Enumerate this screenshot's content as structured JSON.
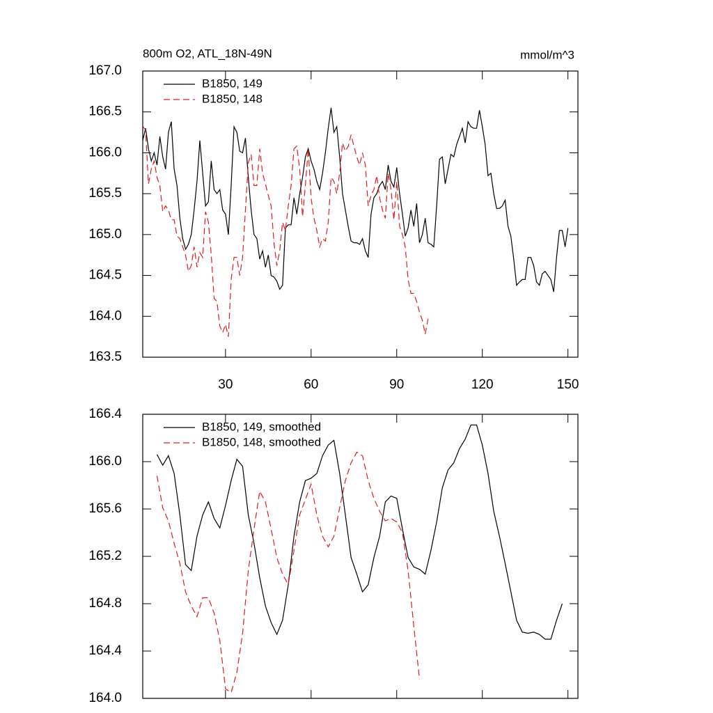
{
  "chart_data": [
    {
      "type": "line",
      "title": "800m O2, ATL_18N-49N",
      "units_label": "mmol/m^3",
      "x": [
        1,
        2,
        3,
        4,
        5,
        6,
        7,
        8,
        9,
        10,
        11,
        12,
        13,
        14,
        15,
        16,
        17,
        18,
        19,
        20,
        21,
        22,
        23,
        24,
        25,
        26,
        27,
        28,
        29,
        30,
        31,
        32,
        33,
        34,
        35,
        36,
        37,
        38,
        39,
        40,
        41,
        42,
        43,
        44,
        45,
        46,
        47,
        48,
        49,
        50,
        51,
        52,
        53,
        54,
        55,
        56,
        57,
        58,
        59,
        60,
        61,
        62,
        63,
        64,
        65,
        66,
        67,
        68,
        69,
        70,
        71,
        72,
        73,
        74,
        75,
        76,
        77,
        78,
        79,
        80,
        81,
        82,
        83,
        84,
        85,
        86,
        87,
        88,
        89,
        90,
        91,
        92,
        93,
        94,
        95,
        96,
        97,
        98,
        99,
        100,
        101,
        102,
        103,
        104,
        105,
        106,
        107,
        108,
        109,
        110,
        111,
        112,
        113,
        114,
        115,
        116,
        117,
        118,
        119,
        120,
        121,
        122,
        123,
        124,
        125,
        126,
        127,
        128,
        129,
        130,
        131,
        132,
        133,
        134,
        135,
        136,
        137,
        138,
        139,
        140,
        141,
        142,
        143,
        144,
        145,
        146,
        147,
        148,
        149,
        150
      ],
      "series": [
        {
          "name": "B1850, 149",
          "color": "#000000",
          "dash": false,
          "values": [
            166.15,
            166.3,
            166.05,
            165.9,
            166.0,
            165.85,
            166.2,
            165.95,
            165.8,
            166.25,
            166.38,
            165.8,
            165.6,
            165.2,
            164.95,
            164.82,
            164.88,
            165.0,
            165.3,
            165.65,
            166.15,
            165.75,
            165.35,
            165.4,
            165.9,
            165.55,
            165.5,
            165.55,
            165.3,
            165.25,
            165.0,
            165.6,
            166.32,
            166.25,
            166.02,
            166.0,
            166.18,
            165.7,
            165.3,
            165.0,
            164.95,
            164.7,
            164.8,
            164.6,
            164.75,
            164.5,
            164.48,
            164.43,
            164.33,
            164.38,
            165.08,
            165.12,
            165.12,
            165.45,
            165.25,
            165.5,
            165.7,
            165.95,
            166.05,
            165.9,
            165.8,
            165.65,
            165.55,
            165.75,
            166.0,
            166.3,
            166.55,
            166.25,
            166.32,
            165.95,
            165.5,
            165.3,
            165.1,
            164.92,
            164.9,
            164.9,
            164.88,
            164.95,
            164.8,
            164.72,
            165.25,
            165.45,
            165.5,
            165.6,
            165.65,
            165.55,
            165.85,
            165.65,
            165.58,
            165.82,
            165.5,
            165.25,
            164.98,
            165.08,
            165.3,
            165.1,
            165.38,
            164.9,
            165.0,
            165.2,
            164.9,
            164.88,
            164.85,
            165.35,
            165.92,
            165.95,
            165.62,
            165.8,
            165.98,
            165.95,
            166.1,
            166.2,
            166.3,
            166.12,
            166.38,
            166.32,
            166.3,
            166.3,
            166.52,
            166.32,
            166.1,
            165.72,
            165.75,
            165.5,
            165.32,
            165.32,
            165.35,
            165.42,
            165.1,
            164.98,
            164.7,
            164.38,
            164.42,
            164.45,
            164.45,
            164.72,
            164.72,
            164.62,
            164.42,
            164.38,
            164.52,
            164.55,
            164.5,
            164.45,
            164.3,
            164.72,
            165.05,
            165.05,
            164.85,
            165.08
          ]
        },
        {
          "name": "B1850, 148",
          "color": "#e41a1c",
          "dash": true,
          "values": [
            166.32,
            166.28,
            165.62,
            165.8,
            165.9,
            165.7,
            165.6,
            165.28,
            165.35,
            165.3,
            165.18,
            165.18,
            164.98,
            164.95,
            164.85,
            164.75,
            164.55,
            164.62,
            164.85,
            164.6,
            164.78,
            164.72,
            165.28,
            165.15,
            164.75,
            164.22,
            164.18,
            163.88,
            163.8,
            163.9,
            163.75,
            164.45,
            164.72,
            164.72,
            164.5,
            164.72,
            165.3,
            165.88,
            165.98,
            165.6,
            165.6,
            166.05,
            165.75,
            165.62,
            165.48,
            165.35,
            164.9,
            164.62,
            164.8,
            165.15,
            165.05,
            165.35,
            165.6,
            166.05,
            166.08,
            165.8,
            165.22,
            165.6,
            166.05,
            165.45,
            165.2,
            165.05,
            164.85,
            164.95,
            164.92,
            165.15,
            165.7,
            165.65,
            165.5,
            165.75,
            166.12,
            166.02,
            166.08,
            166.22,
            166.08,
            165.95,
            165.85,
            166.0,
            165.85,
            165.35,
            165.48,
            165.55,
            165.72,
            165.45,
            165.3,
            165.2,
            165.75,
            165.55,
            165.18,
            165.65,
            165.1,
            165.0,
            164.85,
            164.45,
            164.28,
            164.28,
            164.18,
            164.05,
            163.95,
            163.78,
            163.97,
            null,
            null,
            null,
            null,
            null,
            null,
            null,
            null,
            null,
            null,
            null,
            null,
            null,
            null,
            null,
            null,
            null,
            null,
            null,
            null,
            null,
            null,
            null,
            null,
            null,
            null,
            null,
            null,
            null,
            null,
            null,
            null,
            null,
            null,
            null,
            null,
            null,
            null,
            null,
            null,
            null,
            null,
            null,
            null,
            null,
            null,
            null,
            null,
            null
          ]
        }
      ],
      "xlim": [
        1,
        153.5
      ],
      "xticks": [
        30,
        60,
        90,
        120,
        150
      ],
      "xtick_labels": true,
      "ylim": [
        163.5,
        167.0
      ],
      "yticks": [
        {
          "value": 167.0,
          "label": "167.0"
        },
        166.5,
        {
          "value": 166.0,
          "label": "166.0"
        },
        165.5,
        {
          "value": 165.0,
          "label": "165.0"
        },
        164.5,
        {
          "value": 164.0,
          "label": "164.0"
        },
        163.5
      ]
    },
    {
      "type": "line",
      "x": [
        6,
        8,
        10,
        12,
        14,
        16,
        18,
        20,
        22,
        24,
        26,
        28,
        30,
        32,
        34,
        36,
        38,
        40,
        42,
        44,
        46,
        48,
        50,
        52,
        54,
        56,
        58,
        60,
        62,
        64,
        66,
        68,
        70,
        72,
        74,
        76,
        78,
        80,
        82,
        84,
        86,
        88,
        90,
        92,
        94,
        96,
        98,
        100,
        102,
        104,
        106,
        108,
        110,
        112,
        114,
        116,
        118,
        120,
        122,
        124,
        126,
        128,
        130,
        132,
        134,
        136,
        138,
        140,
        142,
        144,
        146,
        148
      ],
      "series": [
        {
          "name": "B1850, 149, smoothed",
          "color": "#000000",
          "dash": false,
          "values": [
            166.06,
            165.97,
            166.05,
            165.9,
            165.55,
            165.13,
            165.08,
            165.37,
            165.55,
            165.66,
            165.52,
            165.44,
            165.63,
            165.84,
            166.02,
            165.96,
            165.55,
            165.31,
            165.02,
            164.78,
            164.64,
            164.54,
            164.66,
            164.96,
            165.37,
            165.66,
            165.84,
            165.86,
            165.9,
            166.05,
            166.14,
            166.18,
            165.9,
            165.55,
            165.19,
            165.05,
            164.9,
            164.96,
            165.19,
            165.37,
            165.66,
            165.71,
            165.69,
            165.43,
            165.19,
            165.11,
            165.09,
            165.05,
            165.25,
            165.49,
            165.78,
            165.93,
            165.99,
            166.11,
            166.19,
            166.31,
            166.31,
            166.14,
            165.9,
            165.58,
            165.37,
            165.14,
            164.9,
            164.66,
            164.56,
            164.55,
            164.56,
            164.54,
            164.5,
            164.5,
            164.66,
            164.8
          ]
        },
        {
          "name": "B1850, 148, smoothed",
          "color": "#e41a1c",
          "dash": true,
          "values": [
            165.88,
            165.61,
            165.5,
            165.31,
            165.14,
            164.9,
            164.78,
            164.69,
            164.85,
            164.85,
            164.72,
            164.49,
            164.08,
            164.05,
            164.22,
            164.55,
            165.08,
            165.43,
            165.75,
            165.66,
            165.43,
            165.19,
            165.05,
            164.96,
            165.25,
            165.55,
            165.68,
            165.81,
            165.55,
            165.37,
            165.28,
            165.37,
            165.61,
            165.84,
            165.99,
            166.08,
            166.05,
            165.84,
            165.69,
            165.58,
            165.5,
            165.52,
            165.49,
            165.4,
            165.08,
            164.61,
            164.16,
            null,
            null,
            null,
            null,
            null,
            null,
            null,
            null,
            null,
            null,
            null,
            null,
            null,
            null,
            null,
            null,
            null,
            null,
            null,
            null,
            null,
            null,
            null,
            null,
            null
          ]
        }
      ],
      "xlim": [
        1,
        153.5
      ],
      "xticks": [
        30,
        60,
        90,
        120,
        150
      ],
      "xtick_labels": false,
      "ylim": [
        164.0,
        166.4
      ],
      "yticks": [
        166.4,
        {
          "value": 166.0,
          "label": "166.0"
        },
        165.6,
        165.2,
        164.8,
        164.4,
        {
          "value": 164.0,
          "label": "164.0"
        }
      ]
    }
  ]
}
